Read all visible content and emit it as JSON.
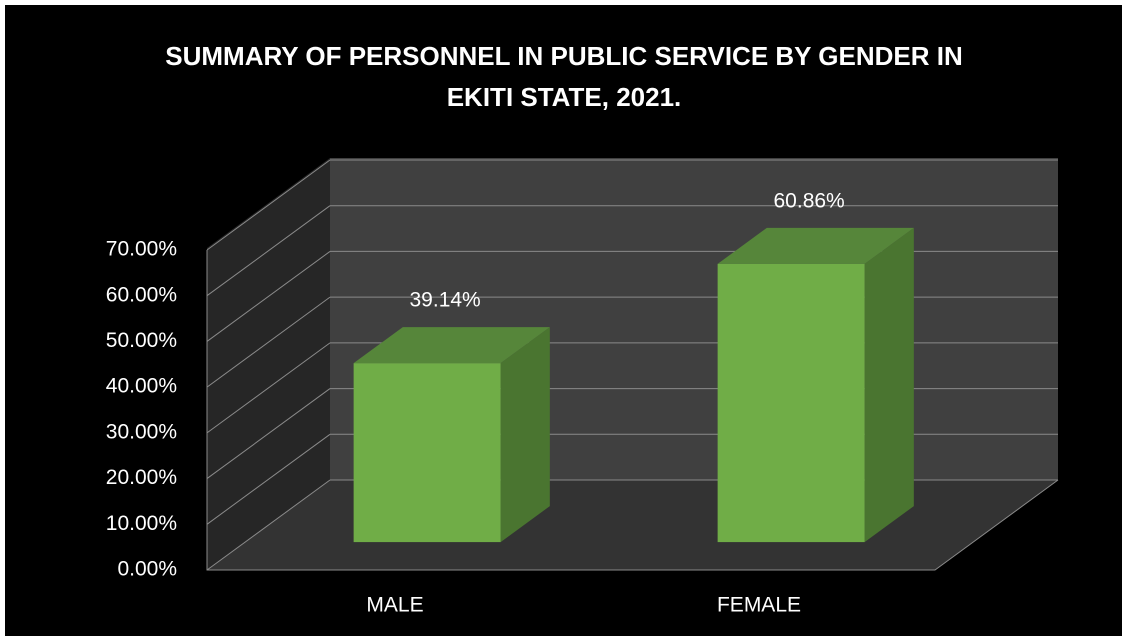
{
  "chart_data": {
    "type": "bar3d",
    "title": "SUMMARY OF PERSONNEL IN PUBLIC SERVICE BY GENDER IN EKITI STATE, 2021.",
    "categories": [
      "MALE",
      "FEMALE"
    ],
    "values": [
      39.14,
      60.86
    ],
    "value_labels": [
      "39.14%",
      "60.86%"
    ],
    "color": "#70ad47",
    "ylim": [
      0,
      70
    ],
    "yticks": [
      {
        "value": 0,
        "label": "0.00%"
      },
      {
        "value": 10,
        "label": "10.00%"
      },
      {
        "value": 20,
        "label": "20.00%"
      },
      {
        "value": 30,
        "label": "30.00%"
      },
      {
        "value": 40,
        "label": "40.00%"
      },
      {
        "value": 50,
        "label": "50.00%"
      },
      {
        "value": 60,
        "label": "60.00%"
      },
      {
        "value": 70,
        "label": "70.00%"
      }
    ],
    "grid": true
  }
}
